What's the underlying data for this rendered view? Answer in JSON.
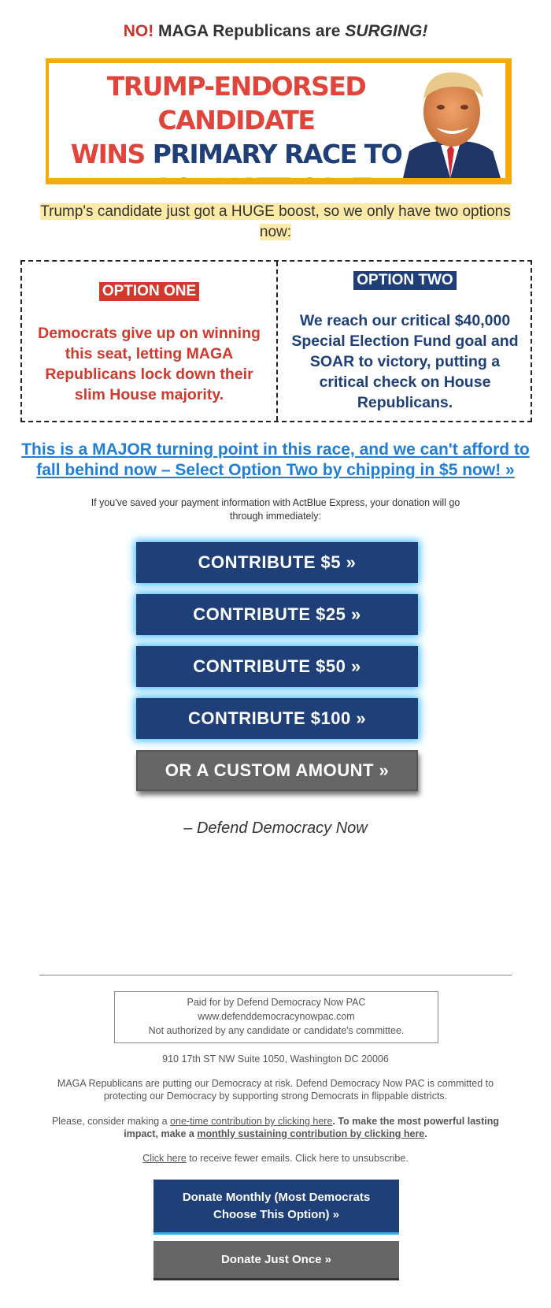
{
  "headline": {
    "no": "NO!",
    "middle": " MAGA Republicans are ",
    "surging": "SURGING!"
  },
  "banner": {
    "line1": "TRUMP-ENDORSED CANDIDATE",
    "line2_red": "WINS",
    "line2_navy": " PRIMARY RACE TO",
    "line3": "REPLACE MATT GAETZ"
  },
  "subheadline": "Trump's candidate just got a HUGE boost, so we only have two options now:",
  "options": {
    "one": {
      "tag": "OPTION ONE",
      "text": "Democrats give up on winning this seat, letting MAGA Republicans lock down their slim House majority."
    },
    "two": {
      "tag": "OPTION TWO",
      "text": "We reach our critical $40,000 Special Election Fund goal and SOAR to victory, putting a critical check on House Republicans."
    }
  },
  "cta_link": "This is a MAJOR turning point in this race, and we can't afford to fall behind now – Select Option Two by chipping in $5 now! »",
  "express_note": "If you've saved your payment information with ActBlue Express, your donation will go through immediately:",
  "buttons": {
    "b5": "CONTRIBUTE $5 »",
    "b25": "CONTRIBUTE $25 »",
    "b50": "CONTRIBUTE $50 »",
    "b100": "CONTRIBUTE $100 »",
    "custom": "OR A CUSTOM AMOUNT »"
  },
  "signature": "– Defend Democracy Now",
  "paid_for": {
    "line1": "Paid for by Defend Democracy Now PAC",
    "line2": "www.defenddemocracynowpac.com",
    "line3": "Not authorized by any candidate or candidate's committee."
  },
  "address": "910 17th ST NW Suite 1050, Washington DC 20006",
  "mission": "MAGA Republicans are putting our Democracy at risk. Defend Democracy Now PAC is committed to protecting our Democracy by supporting strong Democrats in flippable districts.",
  "consider": {
    "prefix": "Please, consider making a ",
    "one_time_link": "one-time contribution by clicking here",
    "middle": ". To make the most powerful lasting impact, make a ",
    "monthly_link": "monthly sustaining contribution by clicking here",
    "suffix": "."
  },
  "fewer_emails": {
    "link": "Click here",
    "rest": " to receive fewer emails. Click here to unsubscribe."
  },
  "footer_buttons": {
    "monthly": "Donate Monthly (Most Democrats Choose This Option) »",
    "once": "Donate Just Once »"
  },
  "colors": {
    "red": "#d0392c",
    "navy": "#1e3f78",
    "link_blue": "#1f7fd6",
    "highlight": "#fde9a6",
    "banner_yellow": "#f2ac0c",
    "glow": "#35b7f5"
  }
}
